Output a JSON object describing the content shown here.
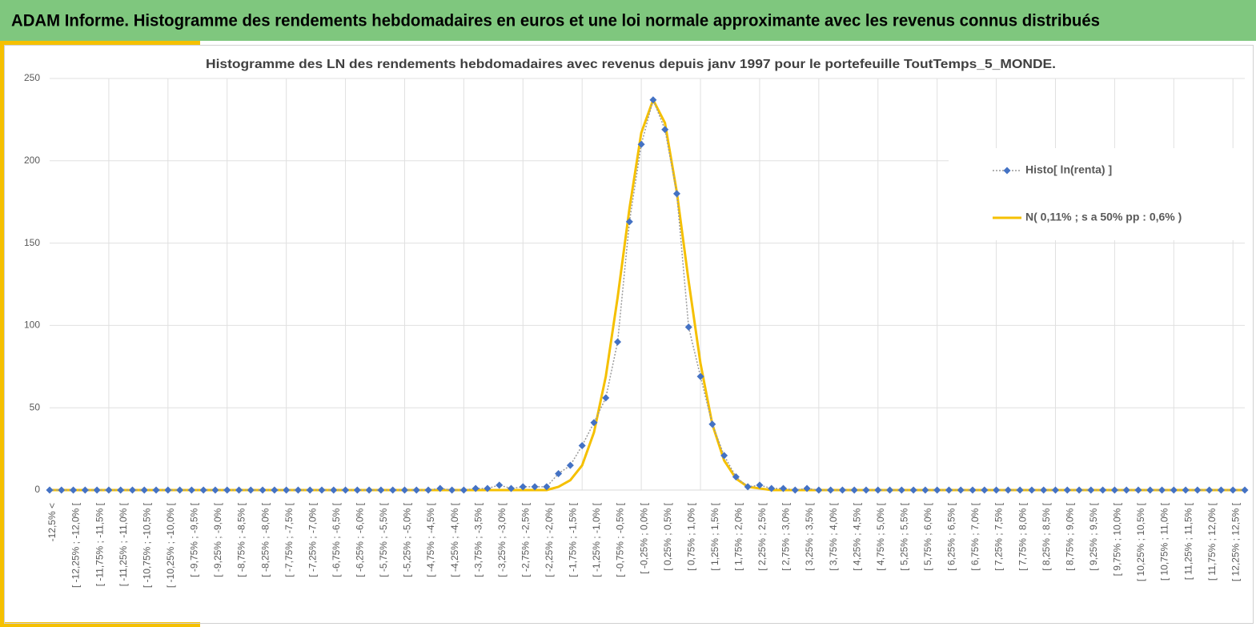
{
  "header": {
    "title": "ADAM Informe. Histogramme des rendements hebdomadaires en euros et une loi normale approximante avec les revenus connus distribués"
  },
  "chart_data": {
    "type": "line",
    "title": "Histogramme des LN des rendements hebdomadaires avec revenus depuis janv 1997 pour le portefeuille ToutTemps_5_MONDE.",
    "categories": [
      "-12,5% <",
      null,
      "[ -12,25% ; -12,0% [",
      null,
      "[ -11,75% ; -11,5% [",
      null,
      "[ -11,25% ; -11,0% [",
      null,
      "[ -10,75% ; -10,5% [",
      null,
      "[ -10,25% ; -10,0% [",
      null,
      "[ -9,75% ; -9,5% [",
      null,
      "[ -9,25% ; -9,0% [",
      null,
      "[ -8,75% ; -8,5% [",
      null,
      "[ -8,25% ; -8,0% [",
      null,
      "[ -7,75% ; -7,5% [",
      null,
      "[ -7,25% ; -7,0% [",
      null,
      "[ -6,75% ; -6,5% [",
      null,
      "[ -6,25% ; -6,0% [",
      null,
      "[ -5,75% ; -5,5% [",
      null,
      "[ -5,25% ; -5,0% [",
      null,
      "[ -4,75% ; -4,5% [",
      null,
      "[ -4,25% ; -4,0% [",
      null,
      "[ -3,75% ; -3,5% [",
      null,
      "[ -3,25% ; -3,0% [",
      null,
      "[ -2,75% ; -2,5% [",
      null,
      "[ -2,25% ; -2,0% [",
      null,
      "[ -1,75% ; -1,5% [",
      null,
      "[ -1,25% ; -1,0% [",
      null,
      "[ -0,75% ; -0,5% [",
      null,
      "[ -0,25% ; 0,0% [",
      null,
      "[ 0,25% ; 0,5% [",
      null,
      "[ 0,75% ; 1,0% [",
      null,
      "[ 1,25% ; 1,5% [",
      null,
      "[ 1,75% ; 2,0% [",
      null,
      "[ 2,25% ; 2,5% [",
      null,
      "[ 2,75% ; 3,0% [",
      null,
      "[ 3,25% ; 3,5% [",
      null,
      "[ 3,75% ; 4,0% [",
      null,
      "[ 4,25% ; 4,5% [",
      null,
      "[ 4,75% ; 5,0% [",
      null,
      "[ 5,25% ; 5,5% [",
      null,
      "[ 5,75% ; 6,0% [",
      null,
      "[ 6,25% ; 6,5% [",
      null,
      "[ 6,75% ; 7,0% [",
      null,
      "[ 7,25% ; 7,5% [",
      null,
      "[ 7,75% ; 8,0% [",
      null,
      "[ 8,25% ; 8,5% [",
      null,
      "[ 8,75% ; 9,0% [",
      null,
      "[ 9,25% ; 9,5% [",
      null,
      "[ 9,75% ; 10,0% [",
      null,
      "[ 10,25% ; 10,5% [",
      null,
      "[ 10,75% ; 11,0% [",
      null,
      "[ 11,25% ; 11,5% [",
      null,
      "[ 11,75% ; 12,0% [",
      null,
      "[ 12,25% ; 12,5% [",
      null
    ],
    "series": [
      {
        "name": "Histo[ ln(renta) ]",
        "color": "#4472c4",
        "values": [
          0,
          0,
          0,
          0,
          0,
          0,
          0,
          0,
          0,
          0,
          0,
          0,
          0,
          0,
          0,
          0,
          0,
          0,
          0,
          0,
          0,
          0,
          0,
          0,
          0,
          0,
          0,
          0,
          0,
          0,
          0,
          0,
          0,
          1,
          0,
          0,
          1,
          1,
          3,
          1,
          2,
          2,
          2,
          10,
          15,
          27,
          41,
          56,
          90,
          163,
          210,
          237,
          219,
          180,
          99,
          69,
          40,
          21,
          8,
          2,
          3,
          1,
          1,
          0,
          1,
          0,
          0,
          0,
          0,
          0,
          0,
          0,
          0,
          0,
          0,
          0,
          0,
          0,
          0,
          0,
          0,
          0,
          0,
          0,
          0,
          0,
          0,
          0,
          0,
          0,
          0,
          0,
          0,
          0,
          0,
          0,
          0,
          0,
          0,
          0,
          0,
          0
        ]
      },
      {
        "name": "N( 0,11% ; s a 50% pp : 0,6% )",
        "color": "#f5c000",
        "values": [
          0,
          0,
          0,
          0,
          0,
          0,
          0,
          0,
          0,
          0,
          0,
          0,
          0,
          0,
          0,
          0,
          0,
          0,
          0,
          0,
          0,
          0,
          0,
          0,
          0,
          0,
          0,
          0,
          0,
          0,
          0,
          0,
          0,
          0,
          0,
          0,
          0,
          0,
          0,
          0,
          0,
          0,
          0,
          2,
          6,
          15,
          35,
          69,
          117,
          171,
          217,
          237,
          223,
          181,
          127,
          77,
          40,
          18,
          7,
          2,
          1,
          0,
          0,
          0,
          0,
          0,
          0,
          0,
          0,
          0,
          0,
          0,
          0,
          0,
          0,
          0,
          0,
          0,
          0,
          0,
          0,
          0,
          0,
          0,
          0,
          0,
          0,
          0,
          0,
          0,
          0,
          0,
          0,
          0,
          0,
          0,
          0,
          0,
          0,
          0,
          0,
          0
        ]
      }
    ],
    "ylim": [
      0,
      250
    ],
    "yticks": [
      0,
      50,
      100,
      150,
      200,
      250
    ],
    "grid": true,
    "legend": "right"
  }
}
